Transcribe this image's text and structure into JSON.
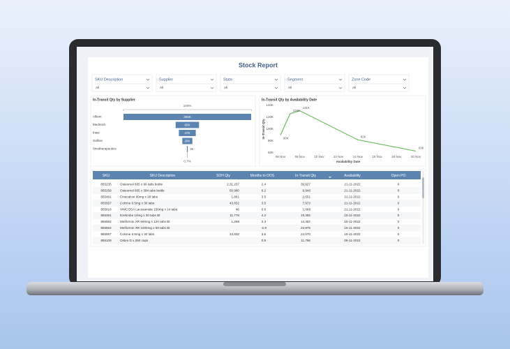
{
  "header": {
    "title": "Stock Report"
  },
  "filters": [
    {
      "label": "SKU Description",
      "value": "All"
    },
    {
      "label": "Supplier",
      "value": "All"
    },
    {
      "label": "State",
      "value": "All"
    },
    {
      "label": "Segment",
      "value": "All"
    },
    {
      "label": "Zone Code",
      "value": "All"
    }
  ],
  "chart_data": [
    {
      "type": "funnel",
      "title": "In-Transit Qty by Supplier",
      "categories": [
        "Alkem",
        "Medreich",
        "Intas",
        "Gefitec",
        "Sinotherapeutics"
      ],
      "values": [
        355000,
        65000,
        47000,
        28000,
        2500
      ],
      "value_labels": [
        "355K",
        "65K",
        "47K",
        "28K",
        "3K"
      ],
      "annotations": [
        "100%",
        "0.7%"
      ],
      "color": "#5b84b1"
    },
    {
      "type": "line",
      "title": "In-Transit Qty by Availability Date",
      "x_label": "Availability Date",
      "y_label": "In-Transit Qty",
      "x": [
        "06 Nov",
        "07 Nov",
        "08 Nov",
        "14 Nov",
        "20 Nov"
      ],
      "series": [
        {
          "name": "In-Transit Qty",
          "color": "#6abf59",
          "values": [
            90000,
            126000,
            131000,
            82000,
            63000
          ],
          "value_labels": [
            "90K",
            "126K",
            "131K",
            "82K",
            "63K"
          ]
        }
      ],
      "xticks": [
        "06 Nov",
        "08 Nov",
        "10 Nov",
        "12 Nov",
        "14 Nov",
        "16 Nov",
        "18 Nov",
        "20 Nov"
      ],
      "ylim": [
        60000,
        140000
      ],
      "yticks": [
        {
          "value": 60000,
          "label": "60K"
        },
        {
          "value": 80000,
          "label": "80K"
        },
        {
          "value": 100000,
          "label": "100K"
        },
        {
          "value": 120000,
          "label": "120K"
        },
        {
          "value": 140000,
          "label": "140K"
        }
      ],
      "grid": false
    }
  ],
  "table": {
    "columns": [
      "SKU",
      "SKU Description",
      "SOH Qty",
      "Months to OOS",
      "In-Transit Qty",
      "Availability",
      "Open PO"
    ],
    "rows": [
      [
        "855235",
        "Osteomol 665 x 96 tabs bottle",
        "2,31,237",
        "2.4",
        "39,927",
        "21-11-2022",
        "0"
      ],
      [
        "855258",
        "Osteomol 665 x 384 tabs bottle",
        "50,980",
        "6.2",
        "9,946",
        "21-11-2022",
        "0"
      ],
      [
        "855491",
        "Cinacalcet 60mg x 28 tabs",
        "1,861",
        "3.5",
        "2,551",
        "21-11-2022",
        "0"
      ],
      [
        "855567",
        "Colcine 0.5mg x 30 tabs",
        "43,832",
        "3.5",
        "7,972",
        "21-11-2022",
        "0"
      ],
      [
        "855616",
        "VIMCOSA Lacosamide 150mg x 14 tabs",
        "46",
        "0.0",
        "1,068",
        "21-11-2022",
        "0"
      ],
      [
        "855391",
        "Ezetimbe 10mg x 30 tabs Bt",
        "11,778",
        "4.2",
        "19,392",
        "15-11-2022",
        "0"
      ],
      [
        "855562",
        "Metformin XR 500mg x 120 tabs Bt",
        "1,298",
        "3.3",
        "14,352",
        "15-11-2022",
        "0"
      ],
      [
        "855564",
        "Metformin XR 1000mg x 60 tabs Bt",
        null,
        "-2.9",
        "23,976",
        "15-11-2022",
        "0"
      ],
      [
        "855567",
        "Colcine 0.5mg x 30 tabs",
        "43,832",
        "3.5",
        "24,070",
        "15-11-2022",
        "0"
      ],
      [
        "855108",
        "Osteo D x 250 caps",
        null,
        "0.5",
        "11,796",
        "08-11-2022",
        "0"
      ]
    ]
  }
}
